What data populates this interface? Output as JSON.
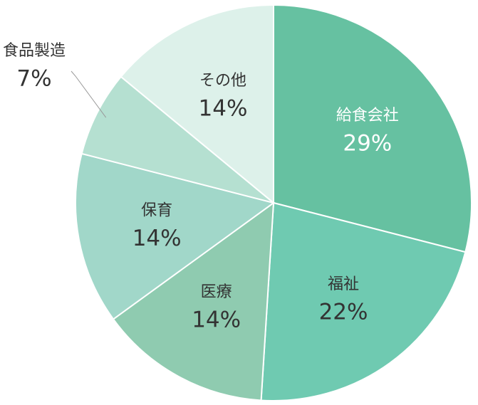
{
  "chart_data": {
    "type": "pie",
    "categories": [
      "給食会社",
      "福祉",
      "医療",
      "保育",
      "食品製造",
      "その他"
    ],
    "values": [
      29,
      22,
      14,
      14,
      7,
      14
    ],
    "value_labels": [
      "29%",
      "22%",
      "14%",
      "14%",
      "7%",
      "14%"
    ],
    "colors": [
      "#66c1a1",
      "#6fcab1",
      "#8fcbb0",
      "#a1d7c9",
      "#b5e0d1",
      "#ddf1ea"
    ]
  }
}
